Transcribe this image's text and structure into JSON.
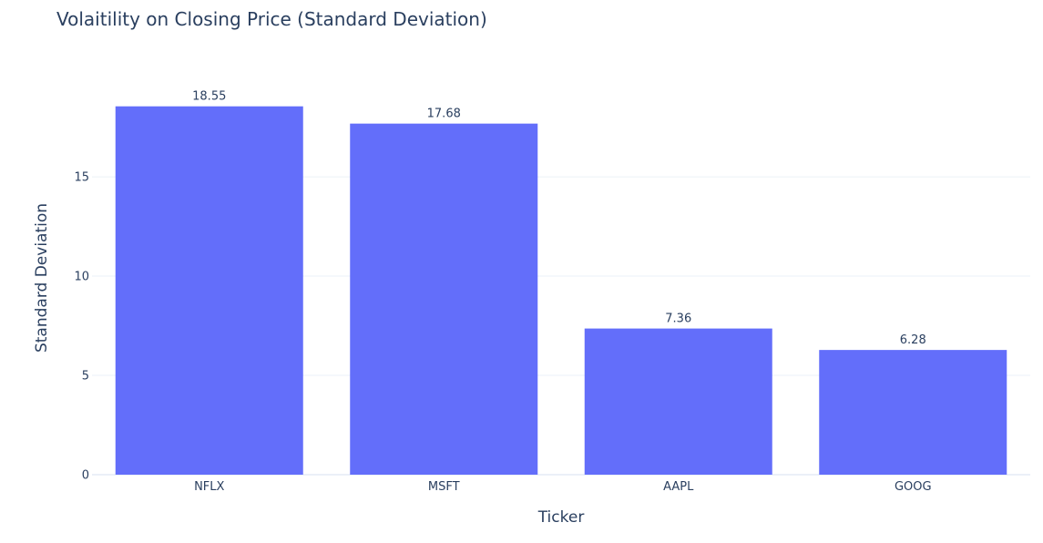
{
  "chart_data": {
    "type": "bar",
    "title": "Volaitility on Closing Price (Standard Deviation)",
    "xlabel": "Ticker",
    "ylabel": "Standard Deviation",
    "categories": [
      "NFLX",
      "MSFT",
      "AAPL",
      "GOOG"
    ],
    "values": [
      18.55,
      17.68,
      7.36,
      6.28
    ],
    "value_labels": [
      "18.55",
      "17.68",
      "7.36",
      "6.28"
    ],
    "ylim": [
      0,
      19.5
    ],
    "yticks": [
      0,
      5,
      10,
      15
    ],
    "ytick_labels": [
      "0",
      "5",
      "10",
      "15"
    ],
    "grid": true,
    "bar_color": "#636efa"
  }
}
